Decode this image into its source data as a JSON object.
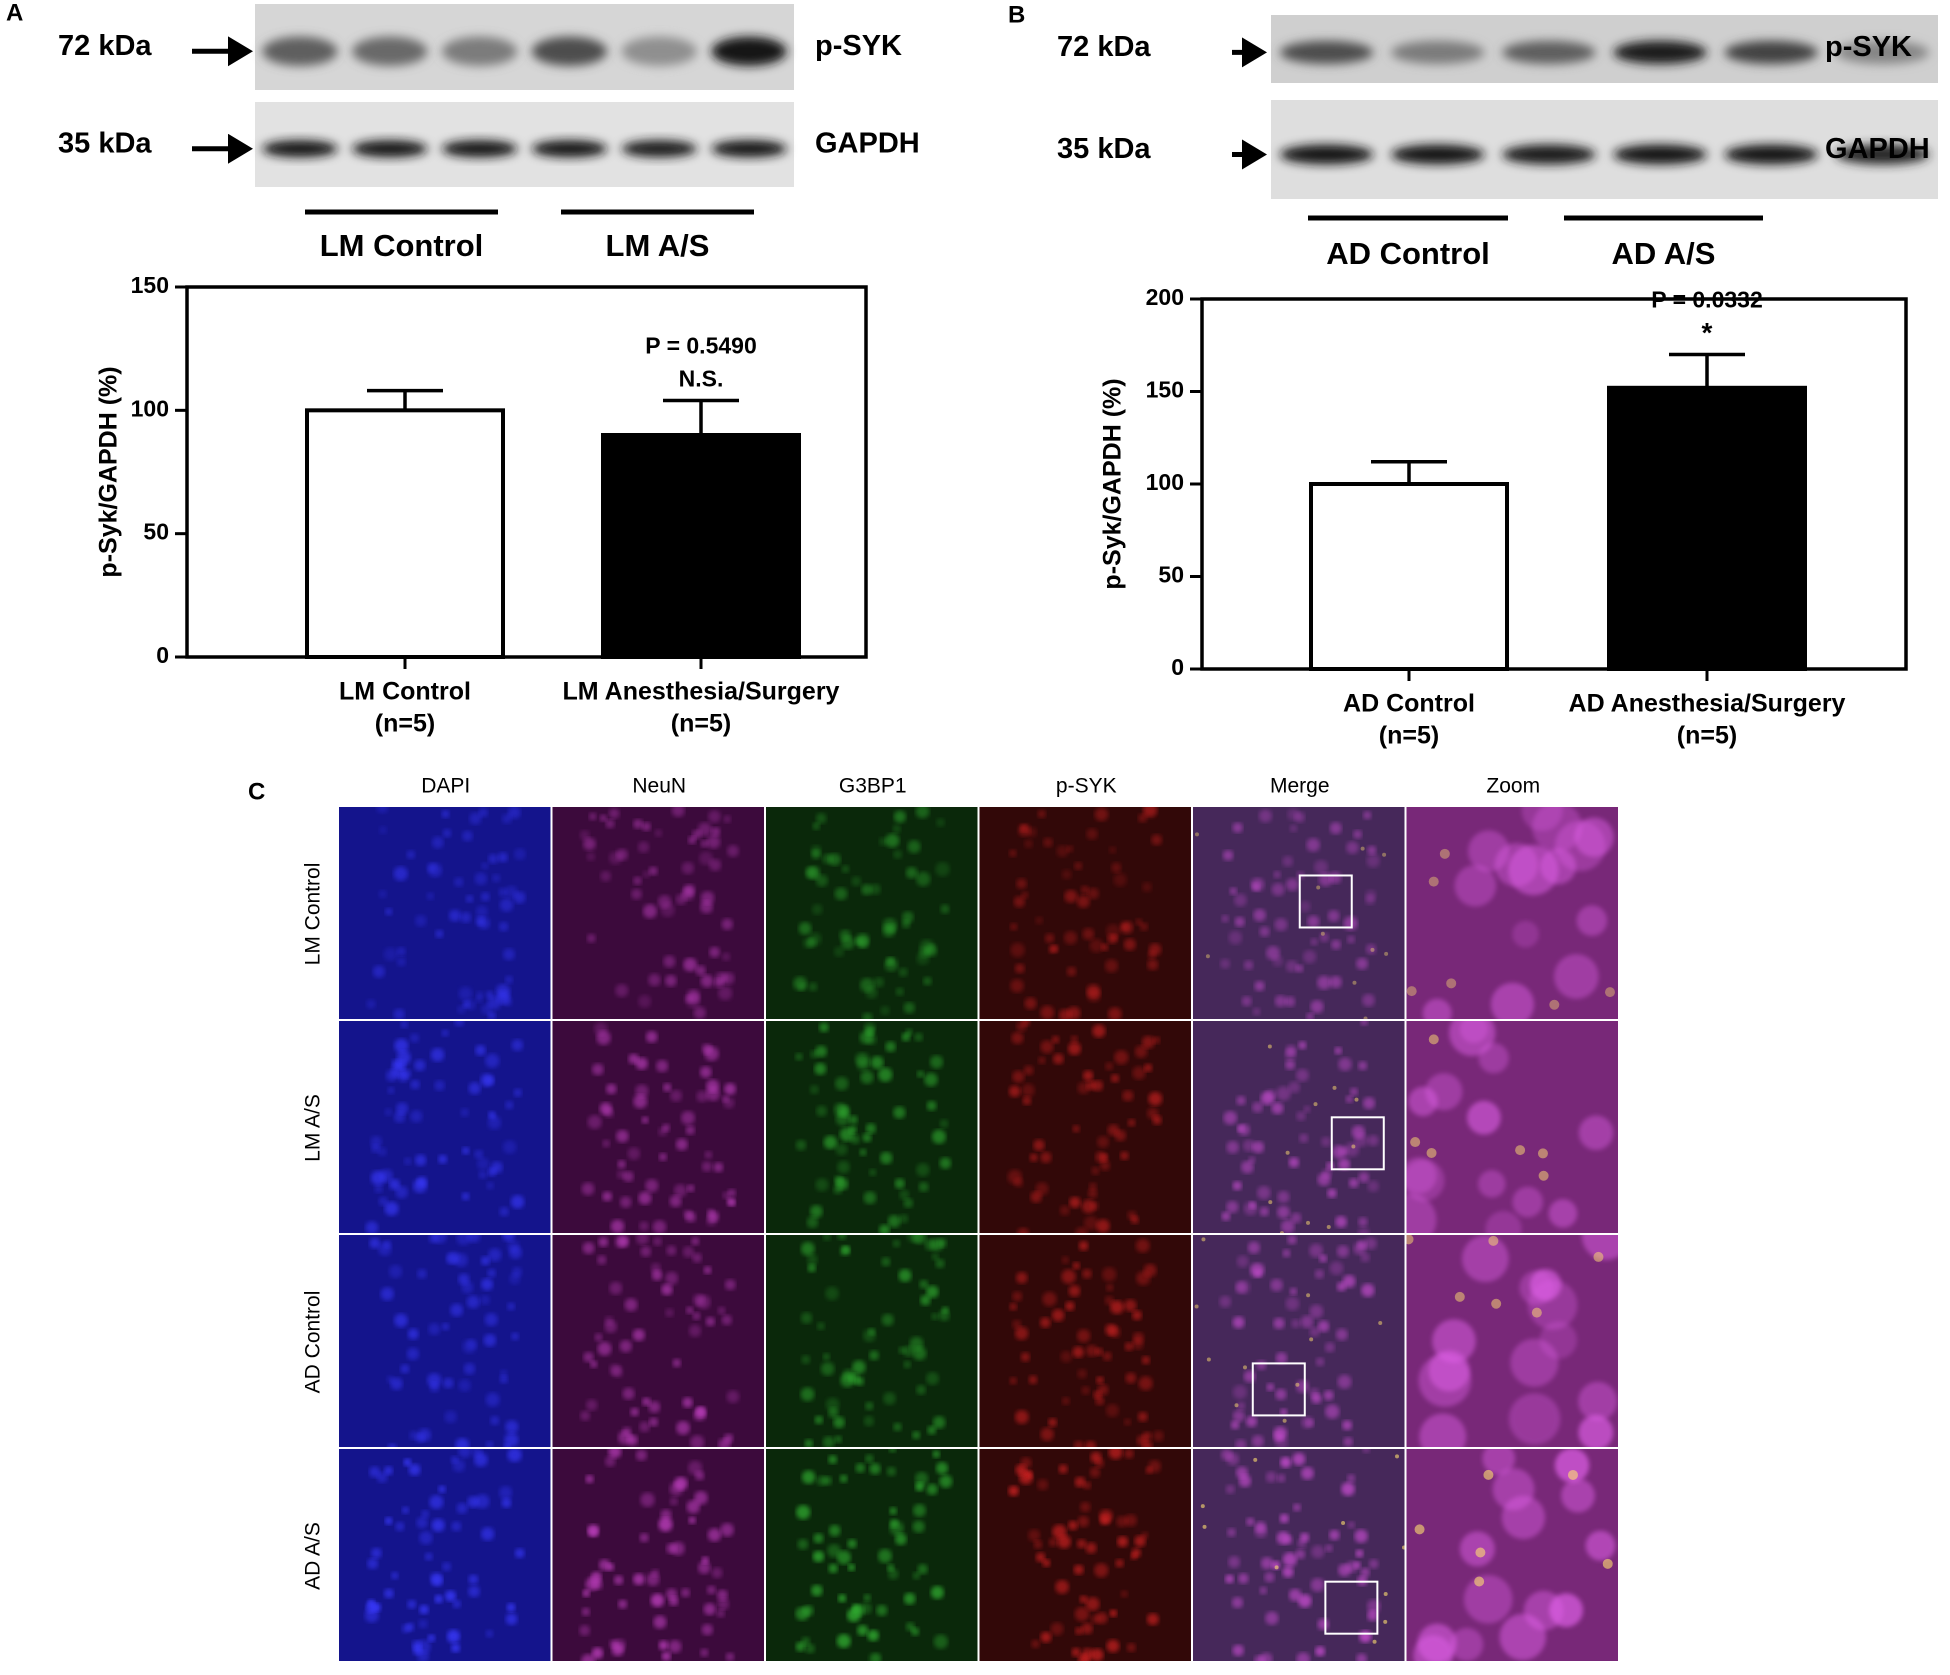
{
  "panels": {
    "a": "A",
    "b": "B",
    "c": "C"
  },
  "blots": [
    {
      "markers": [
        "72 kDa",
        "35 kDa"
      ],
      "proteins": [
        "p-SYK",
        "GAPDH"
      ],
      "groups": [
        "LM Control",
        "LM A/S"
      ]
    },
    {
      "markers": [
        "72 kDa",
        "35 kDa"
      ],
      "proteins": [
        "p-SYK",
        "GAPDH"
      ],
      "groups": [
        "AD Control",
        "AD A/S"
      ]
    }
  ],
  "chart_data": [
    {
      "type": "bar",
      "y_label": "p-Syk/GAPDH (%)",
      "categories": [
        "LM Control",
        "LM Anesthesia/Surgery"
      ],
      "category_notes": [
        "(n=5)",
        "(n=5)"
      ],
      "series": [
        {
          "values": [
            100,
            90
          ],
          "errors": [
            8,
            14
          ],
          "colors": [
            "#ffffff",
            "#000000"
          ]
        }
      ],
      "value_notes": [
        null,
        [
          "P = 0.5490",
          "N.S."
        ]
      ],
      "ylim": [
        0,
        150
      ],
      "yticks": [
        0,
        50,
        100,
        150
      ]
    },
    {
      "type": "bar",
      "y_label": "p-Syk/GAPDH (%)",
      "categories": [
        "AD Control",
        "AD Anesthesia/Surgery"
      ],
      "category_notes": [
        "(n=5)",
        "(n=5)"
      ],
      "series": [
        {
          "values": [
            100,
            152
          ],
          "errors": [
            12,
            18
          ],
          "colors": [
            "#ffffff",
            "#000000"
          ]
        }
      ],
      "value_notes": [
        null,
        [
          "P = 0.0332",
          "*"
        ]
      ],
      "ylim": [
        0,
        200
      ],
      "yticks": [
        0,
        50,
        100,
        150,
        200
      ]
    }
  ],
  "microscopy": {
    "columns": [
      "DAPI",
      "NeuN",
      "G3BP1",
      "p-SYK",
      "Merge",
      "Zoom"
    ],
    "rows": [
      "LM Control",
      "LM A/S",
      "AD Control",
      "AD A/S"
    ]
  }
}
